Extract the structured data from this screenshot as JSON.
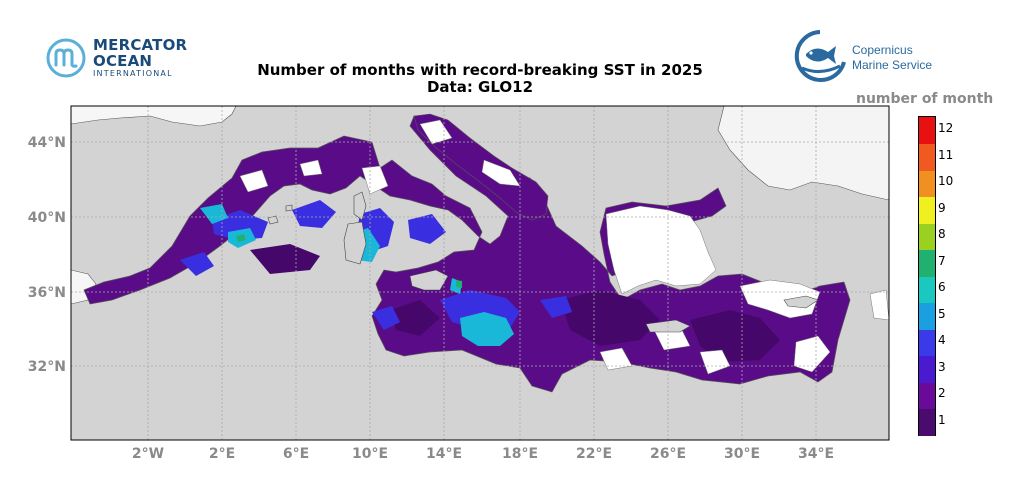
{
  "header": {
    "title_line1": "Number of months with record-breaking SST in 2025",
    "title_line2": "Data: GLO12"
  },
  "logos": {
    "left": {
      "line1": "MERCATOR",
      "line2": "OCEAN",
      "line3": "INTERNATIONAL",
      "icon": "mercator-m-icon",
      "color": "#1a4a7a"
    },
    "right": {
      "line1": "Copernicus",
      "line2": "Marine Service",
      "icon": "copernicus-fish-icon",
      "color": "#2a6aa0"
    }
  },
  "map": {
    "lon_range": [
      -6,
      37.5
    ],
    "lat_range": [
      28,
      46
    ],
    "lat_ticks": [
      {
        "value": 32,
        "label": "32°N"
      },
      {
        "value": 36,
        "label": "36°N"
      },
      {
        "value": 40,
        "label": "40°N"
      },
      {
        "value": 44,
        "label": "44°N"
      }
    ],
    "lon_ticks": [
      {
        "value": -2,
        "label": "2°W"
      },
      {
        "value": 2,
        "label": "2°E"
      },
      {
        "value": 6,
        "label": "6°E"
      },
      {
        "value": 10,
        "label": "10°E"
      },
      {
        "value": 14,
        "label": "14°E"
      },
      {
        "value": 18,
        "label": "18°E"
      },
      {
        "value": 22,
        "label": "22°E"
      },
      {
        "value": 26,
        "label": "26°E"
      },
      {
        "value": 30,
        "label": "30°E"
      },
      {
        "value": 34,
        "label": "34°E"
      }
    ],
    "grid": true,
    "land_color": "#d3d3d3",
    "no_record_color": "#ffffff"
  },
  "colorbar": {
    "label": "number of month",
    "ticks": [
      "1",
      "2",
      "3",
      "4",
      "5",
      "6",
      "7",
      "8",
      "9",
      "10",
      "11",
      "12"
    ],
    "colors": [
      "#4a0a6e",
      "#6a0a9a",
      "#4a1ad0",
      "#3a3ae8",
      "#1aa0e0",
      "#1ac8c0",
      "#20b070",
      "#9ad020",
      "#f0f020",
      "#f09020",
      "#f05a20",
      "#e81010"
    ]
  }
}
